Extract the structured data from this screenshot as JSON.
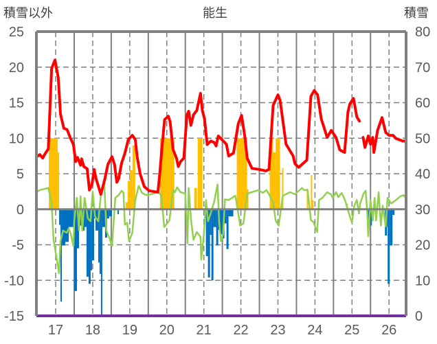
{
  "chart_data": {
    "type": "bar+line",
    "title": "能生",
    "ylabel_left": "積雪以外",
    "ylabel_right": "積雪",
    "xlim": [
      16.48,
      26.46
    ],
    "ylim_left": [
      -15,
      25
    ],
    "ylim_right": [
      0,
      80
    ],
    "yticks_left": [
      -15,
      -10,
      -5,
      0,
      5,
      10,
      15,
      20,
      25
    ],
    "yticks_right": [
      0,
      10,
      20,
      30,
      40,
      50,
      60,
      70,
      80
    ],
    "xticks": [
      17,
      18,
      19,
      20,
      21,
      22,
      23,
      24,
      25,
      26
    ],
    "xtick_labels": [
      "17",
      "18",
      "19",
      "20",
      "21",
      "22",
      "23",
      "24",
      "25",
      "26"
    ],
    "grid": true,
    "colors": {
      "red": "#ff0000",
      "green": "#92d050",
      "orange": "#ffc000",
      "blue": "#0070c0",
      "purple": "#7030a0",
      "axis": "#808080"
    },
    "bars_orange": [
      [
        16.815,
        17.056,
        10
      ],
      [
        17.056,
        17.093,
        8
      ],
      [
        18.889,
        18.944,
        1
      ],
      [
        18.944,
        19.0,
        4
      ],
      [
        19.0,
        19.074,
        5.5
      ],
      [
        19.074,
        19.148,
        9
      ],
      [
        19.815,
        20.204,
        10
      ],
      [
        20.741,
        20.815,
        3
      ],
      [
        20.833,
        20.963,
        10
      ],
      [
        21.889,
        22.167,
        10
      ],
      [
        22.167,
        22.204,
        2.8
      ],
      [
        22.778,
        22.87,
        10
      ],
      [
        22.87,
        22.94,
        8
      ],
      [
        22.94,
        23.056,
        10
      ],
      [
        23.111,
        23.148,
        5.8
      ],
      [
        23.778,
        23.815,
        2.9
      ],
      [
        23.889,
        23.926,
        4.8
      ],
      [
        23.926,
        23.963,
        1.3
      ],
      [
        24.852,
        24.889,
        0.8
      ]
    ],
    "bars_blue": [
      [
        17.093,
        17.13,
        -2.2
      ],
      [
        17.13,
        17.167,
        -13
      ],
      [
        17.167,
        17.259,
        -5.1
      ],
      [
        17.259,
        17.352,
        -4.6
      ],
      [
        17.352,
        17.481,
        -2.5
      ],
      [
        17.5,
        17.574,
        -11.5
      ],
      [
        17.574,
        17.63,
        -5.5
      ],
      [
        17.63,
        17.722,
        -2.3
      ],
      [
        17.722,
        17.778,
        -3
      ],
      [
        17.778,
        17.833,
        -2.5
      ],
      [
        17.833,
        17.889,
        -9.5
      ],
      [
        17.889,
        17.944,
        -10.5
      ],
      [
        17.944,
        17.981,
        -8.6
      ],
      [
        17.981,
        18.037,
        -7.2
      ],
      [
        18.037,
        18.074,
        -1.3
      ],
      [
        18.074,
        18.148,
        -3
      ],
      [
        18.148,
        18.185,
        -7.5
      ],
      [
        18.185,
        18.222,
        -9.1
      ],
      [
        18.222,
        18.259,
        -14.8
      ],
      [
        18.259,
        18.333,
        -2.5
      ],
      [
        18.333,
        18.389,
        -4
      ],
      [
        18.389,
        18.444,
        -1.3
      ],
      [
        18.444,
        18.519,
        -1
      ],
      [
        18.667,
        18.704,
        -0.7
      ],
      [
        21.056,
        21.111,
        -6.6
      ],
      [
        21.111,
        21.167,
        -9.6
      ],
      [
        21.167,
        21.204,
        -3.6
      ],
      [
        21.204,
        21.259,
        -10
      ],
      [
        21.259,
        21.333,
        -2.5
      ],
      [
        21.333,
        21.389,
        -5.1
      ],
      [
        21.389,
        21.444,
        -2.9
      ],
      [
        21.444,
        21.5,
        -3.5
      ],
      [
        21.5,
        21.556,
        -4.1
      ],
      [
        21.556,
        21.611,
        -2
      ],
      [
        21.611,
        21.667,
        -5.6
      ],
      [
        21.667,
        21.796,
        -1
      ],
      [
        25.407,
        25.463,
        -1.5
      ],
      [
        25.463,
        25.5,
        -0.5
      ],
      [
        25.5,
        25.537,
        -2.3
      ],
      [
        25.815,
        25.87,
        -0.5
      ],
      [
        25.889,
        25.944,
        -3.7
      ],
      [
        25.944,
        25.963,
        -2.5
      ],
      [
        25.963,
        26.019,
        -10.5
      ],
      [
        26.019,
        26.093,
        -5.1
      ],
      [
        26.093,
        26.148,
        -0.8
      ]
    ],
    "series_red": [
      [
        [
          16.52,
          7.5
        ],
        [
          16.57,
          7.7
        ],
        [
          16.65,
          7.2
        ],
        [
          16.7,
          7.7
        ],
        [
          16.8,
          8.5
        ],
        [
          16.89,
          19.8
        ],
        [
          16.98,
          21
        ],
        [
          17.07,
          18.5
        ],
        [
          17.13,
          13.4
        ],
        [
          17.22,
          11.4
        ],
        [
          17.31,
          11.2
        ],
        [
          17.39,
          10.1
        ],
        [
          17.48,
          9.1
        ],
        [
          17.54,
          6.7
        ],
        [
          17.59,
          7.3
        ],
        [
          17.67,
          6.2
        ],
        [
          17.7,
          7.1
        ],
        [
          17.76,
          6
        ],
        [
          17.85,
          5.7
        ],
        [
          17.91,
          2.7
        ],
        [
          17.98,
          3.5
        ],
        [
          18.04,
          5.6
        ],
        [
          18.09,
          4.3
        ],
        [
          18.22,
          2.1
        ],
        [
          18.33,
          4.3
        ],
        [
          18.41,
          6.3
        ],
        [
          18.52,
          7.4
        ],
        [
          18.59,
          6.3
        ],
        [
          18.65,
          3.8
        ],
        [
          18.7,
          4.3
        ],
        [
          18.78,
          6.5
        ],
        [
          18.87,
          7.9
        ],
        [
          18.96,
          9.8
        ],
        [
          19.07,
          10.4
        ],
        [
          19.15,
          9.8
        ],
        [
          19.2,
          7.4
        ],
        [
          19.28,
          5
        ],
        [
          19.39,
          3.2
        ],
        [
          19.52,
          2.6
        ],
        [
          19.76,
          2.4
        ],
        [
          19.81,
          5
        ],
        [
          19.87,
          8.6
        ],
        [
          19.94,
          12.6
        ],
        [
          20.04,
          13.1
        ],
        [
          20.09,
          12.3
        ],
        [
          20.17,
          8.4
        ],
        [
          20.26,
          7.2
        ],
        [
          20.31,
          6
        ],
        [
          20.37,
          6.7
        ],
        [
          20.46,
          7.2
        ],
        [
          20.54,
          13.2
        ],
        [
          20.59,
          13.8
        ],
        [
          20.65,
          11.8
        ],
        [
          20.72,
          13.3
        ],
        [
          20.81,
          13.9
        ],
        [
          20.91,
          16.3
        ],
        [
          20.96,
          13.9
        ],
        [
          21.02,
          12.7
        ],
        [
          21.09,
          9.1
        ],
        [
          21.19,
          9.6
        ],
        [
          21.28,
          9.4
        ],
        [
          21.33,
          8.9
        ],
        [
          21.39,
          10.3
        ],
        [
          21.43,
          10.1
        ],
        [
          21.61,
          9.15
        ],
        [
          21.67,
          7.5
        ],
        [
          21.8,
          7.9
        ],
        [
          21.93,
          12.05
        ],
        [
          22.02,
          13.2
        ],
        [
          22.11,
          10.1
        ],
        [
          22.17,
          7.2
        ],
        [
          22.3,
          5.75
        ],
        [
          22.5,
          5.6
        ],
        [
          22.67,
          5.4
        ],
        [
          22.76,
          5.6
        ],
        [
          22.87,
          14.6
        ],
        [
          23.0,
          16.1
        ],
        [
          23.06,
          15.3
        ],
        [
          23.22,
          9.15
        ],
        [
          23.41,
          7.5
        ],
        [
          23.46,
          6.4
        ],
        [
          23.56,
          5.9
        ],
        [
          23.78,
          6.9
        ],
        [
          23.89,
          15.9
        ],
        [
          23.98,
          16.7
        ],
        [
          24.07,
          16.1
        ],
        [
          24.17,
          12.7
        ],
        [
          24.33,
          10.1
        ],
        [
          24.44,
          11.1
        ],
        [
          24.57,
          10.1
        ],
        [
          24.67,
          8.35
        ],
        [
          24.8,
          8.0
        ],
        [
          24.89,
          13.7
        ],
        [
          24.94,
          14.8
        ],
        [
          25.04,
          15.6
        ],
        [
          25.13,
          13.0
        ],
        [
          25.2,
          12.4
        ]
      ],
      [
        [
          25.3,
          10.1
        ],
        [
          25.35,
          8.7
        ],
        [
          25.44,
          10.3
        ],
        [
          25.5,
          9.15
        ],
        [
          25.56,
          10.1
        ],
        [
          25.59,
          8.0
        ],
        [
          25.69,
          11.1
        ],
        [
          25.81,
          12.9
        ],
        [
          25.91,
          10.8
        ],
        [
          26.0,
          10.4
        ],
        [
          26.11,
          10.4
        ],
        [
          26.19,
          9.95
        ],
        [
          26.37,
          9.6
        ],
        [
          26.43,
          9.6
        ]
      ]
    ],
    "series_green": [
      [
        16.48,
        2.4
      ],
      [
        16.57,
        2.7
      ],
      [
        16.8,
        3
      ],
      [
        16.89,
        1
      ],
      [
        16.94,
        -4.2
      ],
      [
        17.02,
        -6.7
      ],
      [
        17.09,
        -9
      ],
      [
        17.13,
        -4.5
      ],
      [
        17.2,
        -3
      ],
      [
        17.3,
        -3.3
      ],
      [
        17.35,
        -2.7
      ],
      [
        17.41,
        -3.5
      ],
      [
        17.48,
        -5.2
      ],
      [
        17.5,
        -1.7
      ],
      [
        17.57,
        1.6
      ],
      [
        17.63,
        -3
      ],
      [
        17.67,
        1.8
      ],
      [
        17.72,
        -3
      ],
      [
        17.78,
        1.6
      ],
      [
        17.87,
        -1.3
      ],
      [
        17.94,
        -1.7
      ],
      [
        18.0,
        2.5
      ],
      [
        18.06,
        -1
      ],
      [
        18.15,
        -1.7
      ],
      [
        18.22,
        2
      ],
      [
        18.31,
        3.8
      ],
      [
        18.37,
        -3
      ],
      [
        18.46,
        -4.2
      ],
      [
        18.52,
        -5.2
      ],
      [
        18.61,
        1.6
      ],
      [
        18.7,
        2
      ],
      [
        18.78,
        2.6
      ],
      [
        18.83,
        2.3
      ],
      [
        18.87,
        -2.2
      ],
      [
        18.93,
        -1.9
      ],
      [
        18.98,
        -4.5
      ],
      [
        19.07,
        -3.3
      ],
      [
        19.15,
        1.3
      ],
      [
        19.24,
        3.3
      ],
      [
        19.33,
        2.3
      ],
      [
        19.44,
        2
      ],
      [
        19.57,
        2.1
      ],
      [
        19.76,
        2.4
      ],
      [
        19.85,
        2
      ],
      [
        19.93,
        -2.5
      ],
      [
        20.07,
        -1.6
      ],
      [
        20.17,
        2.7
      ],
      [
        20.22,
        2.4
      ],
      [
        20.28,
        3.1
      ],
      [
        20.37,
        2.4
      ],
      [
        20.5,
        2.2
      ],
      [
        20.56,
        -4.8
      ],
      [
        20.59,
        3
      ],
      [
        20.65,
        -1.3
      ],
      [
        20.72,
        -4.3
      ],
      [
        20.81,
        -3.2
      ],
      [
        20.91,
        -3.9
      ],
      [
        20.93,
        -7.1
      ],
      [
        21.0,
        -3.5
      ],
      [
        21.06,
        1.3
      ],
      [
        21.11,
        -1.7
      ],
      [
        21.19,
        -0.5
      ],
      [
        21.28,
        1.1
      ],
      [
        21.37,
        3.5
      ],
      [
        21.41,
        -1.6
      ],
      [
        21.46,
        -4.5
      ],
      [
        21.52,
        -3.5
      ],
      [
        21.57,
        1.4
      ],
      [
        21.67,
        1.3
      ],
      [
        21.85,
        1.9
      ],
      [
        21.93,
        -0.6
      ],
      [
        21.98,
        -2.3
      ],
      [
        22.07,
        -2
      ],
      [
        22.17,
        2.2
      ],
      [
        22.48,
        2.7
      ],
      [
        22.59,
        2.3
      ],
      [
        22.69,
        2.7
      ],
      [
        22.76,
        2.1
      ],
      [
        22.87,
        1
      ],
      [
        22.94,
        -1.6
      ],
      [
        23.02,
        -2.3
      ],
      [
        23.13,
        1.9
      ],
      [
        23.33,
        2.4
      ],
      [
        23.46,
        2.1
      ],
      [
        23.65,
        3
      ],
      [
        23.7,
        2.7
      ],
      [
        23.8,
        2.7
      ],
      [
        23.89,
        -1.5
      ],
      [
        23.96,
        -1.8
      ],
      [
        24.06,
        -3.2
      ],
      [
        24.11,
        1.3
      ],
      [
        24.2,
        1.6
      ],
      [
        24.33,
        2.4
      ],
      [
        24.43,
        2.1
      ],
      [
        24.48,
        1.6
      ],
      [
        24.57,
        2.4
      ],
      [
        24.63,
        1.7
      ],
      [
        24.72,
        2.3
      ],
      [
        24.81,
        1.3
      ],
      [
        24.94,
        -1
      ],
      [
        25.0,
        -1.9
      ],
      [
        25.06,
        0.5
      ],
      [
        25.13,
        1.3
      ],
      [
        25.19,
        -0.6
      ],
      [
        25.22,
        0.8
      ],
      [
        25.31,
        2.2
      ],
      [
        25.37,
        2.6
      ],
      [
        25.41,
        -0.3
      ],
      [
        25.44,
        -3.8
      ],
      [
        25.5,
        1.3
      ],
      [
        25.56,
        -1.6
      ],
      [
        25.61,
        1.6
      ],
      [
        25.65,
        -1.6
      ],
      [
        25.72,
        2.4
      ],
      [
        25.78,
        -2.3
      ],
      [
        25.83,
        0.5
      ],
      [
        25.91,
        -2.4
      ],
      [
        25.96,
        1.6
      ],
      [
        26.06,
        0.8
      ],
      [
        26.19,
        1.3
      ],
      [
        26.3,
        1.8
      ],
      [
        26.39,
        2
      ],
      [
        26.43,
        1.7
      ]
    ],
    "series_purple_snow_depth": [
      [
        16.48,
        0
      ],
      [
        26.46,
        0
      ]
    ]
  }
}
